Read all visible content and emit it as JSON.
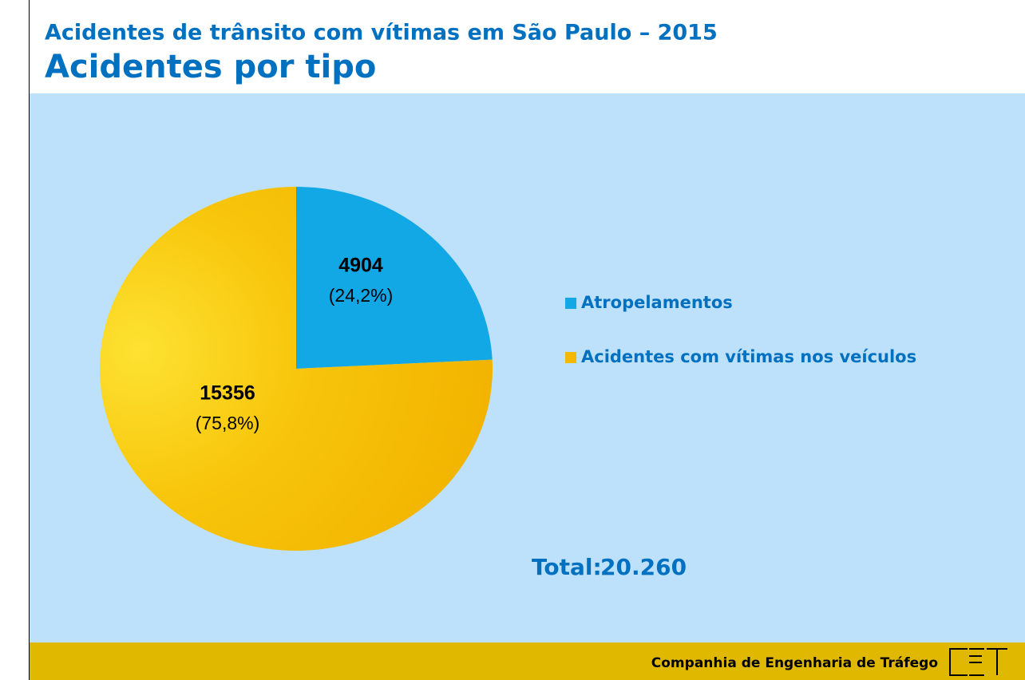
{
  "chart_data": {
    "type": "pie",
    "title": "Acidentes de trânsito com vítimas em São Paulo – 2015",
    "subtitle": "Acidentes por tipo",
    "categories": [
      "Atropelamentos",
      "Acidentes com vítimas nos veículos"
    ],
    "values": [
      4904,
      15356
    ],
    "percent_labels": [
      "(24,2%)",
      "(75,8%)"
    ],
    "colors": [
      "#12a8e6",
      "#f5b800"
    ],
    "total_label": "Total:",
    "total": {
      "value": 20260,
      "label": "20.260"
    },
    "footer": "Companhia de Engenharia de Tráfego"
  }
}
